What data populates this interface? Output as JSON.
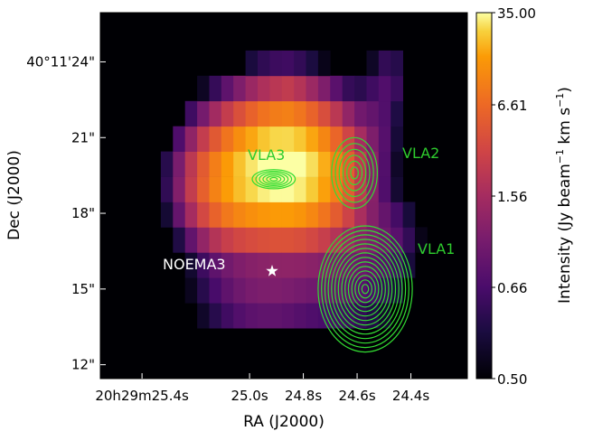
{
  "chart_data": {
    "type": "heatmap",
    "title": "",
    "xlabel": "RA (J2000)",
    "ylabel": "Dec (J2000)",
    "x_ticks": [
      {
        "label": "20h29m25.4s",
        "ra_s": 25.4
      },
      {
        "label": "25.0s",
        "ra_s": 25.0
      },
      {
        "label": "24.8s",
        "ra_s": 24.8
      },
      {
        "label": "24.6s",
        "ra_s": 24.6
      },
      {
        "label": "24.4s",
        "ra_s": 24.4
      }
    ],
    "y_ticks": [
      {
        "label": "40°11'24\"",
        "dec_arcsec": 24
      },
      {
        "label": "21\"",
        "dec_arcsec": 21
      },
      {
        "label": "18\"",
        "dec_arcsec": 18
      },
      {
        "label": "15\"",
        "dec_arcsec": 15
      },
      {
        "label": "12\"",
        "dec_arcsec": 12
      }
    ],
    "xlim_ra_s": [
      25.555,
      24.19
    ],
    "ylim_dec_arcsec": [
      11.45,
      25.95
    ],
    "colorbar": {
      "label": "Intensity (Jy beam$^{-1}$ km s$^{-1}$)",
      "label_main": "Intensity (Jy beam",
      "label_exp1": "−1",
      "label_mid": " km s",
      "label_exp2": "−1",
      "label_end": ")",
      "scale": "log",
      "tick_labels": [
        "35.00",
        "6.61",
        "1.56",
        "0.66",
        "0.50"
      ],
      "tick_values": [
        35.0,
        6.61,
        1.56,
        0.66,
        0.5
      ],
      "colormap": "inferno"
    },
    "annotations": [
      {
        "text": "VLA3",
        "color": "#2ecc2e"
      },
      {
        "text": "VLA2",
        "color": "#2ecc2e"
      },
      {
        "text": "VLA1",
        "color": "#2ecc2e"
      },
      {
        "text": "NOEMA3",
        "color": "#ffffff"
      }
    ],
    "marker": {
      "symbol": "star",
      "color": "#ffffff",
      "label": "NOEMA3"
    },
    "contour_color": "#33dd33",
    "emission_components": [
      {
        "ra_s": 24.88,
        "dec_arcsec": 19.8,
        "peak": 35.0,
        "sx_s": 0.12,
        "sy_arcsec": 1.6
      },
      {
        "ra_s": 25.08,
        "dec_arcsec": 19.2,
        "peak": 14.0,
        "sx_s": 0.1,
        "sy_arcsec": 1.5
      },
      {
        "ra_s": 24.72,
        "dec_arcsec": 19.4,
        "peak": 9.0,
        "sx_s": 0.1,
        "sy_arcsec": 1.5
      },
      {
        "ra_s": 24.95,
        "dec_arcsec": 14.6,
        "peak": 2.3,
        "sx_s": 0.16,
        "sy_arcsec": 0.9
      },
      {
        "ra_s": 24.62,
        "dec_arcsec": 15.4,
        "peak": 1.5,
        "sx_s": 0.14,
        "sy_arcsec": 1.6
      },
      {
        "ra_s": 24.5,
        "dec_arcsec": 17.2,
        "peak": 1.4,
        "sx_s": 0.09,
        "sy_arcsec": 1.0
      },
      {
        "ra_s": 24.52,
        "dec_arcsec": 21.8,
        "peak": 1.3,
        "sx_s": 0.06,
        "sy_arcsec": 1.6
      },
      {
        "ra_s": 24.47,
        "dec_arcsec": 23.5,
        "peak": 0.9,
        "sx_s": 0.04,
        "sy_arcsec": 0.8
      },
      {
        "ra_s": 24.85,
        "dec_arcsec": 22.5,
        "peak": 0.85,
        "sx_s": 0.03,
        "sy_arcsec": 0.6
      }
    ],
    "contour_sources": [
      {
        "name": "VLA1",
        "ra_s": 24.57,
        "dec_arcsec": 15.0,
        "levels": 14,
        "rx_max_s": 0.175,
        "ry_max_arcsec": 2.5
      },
      {
        "name": "VLA2",
        "ra_s": 24.61,
        "dec_arcsec": 19.6,
        "levels": 6,
        "rx_max_s": 0.085,
        "ry_max_arcsec": 1.4
      },
      {
        "name": "VLA3",
        "ra_s": 24.91,
        "dec_arcsec": 19.35,
        "levels": 6,
        "rx_max_s": 0.08,
        "ry_max_arcsec": 0.38
      }
    ]
  }
}
